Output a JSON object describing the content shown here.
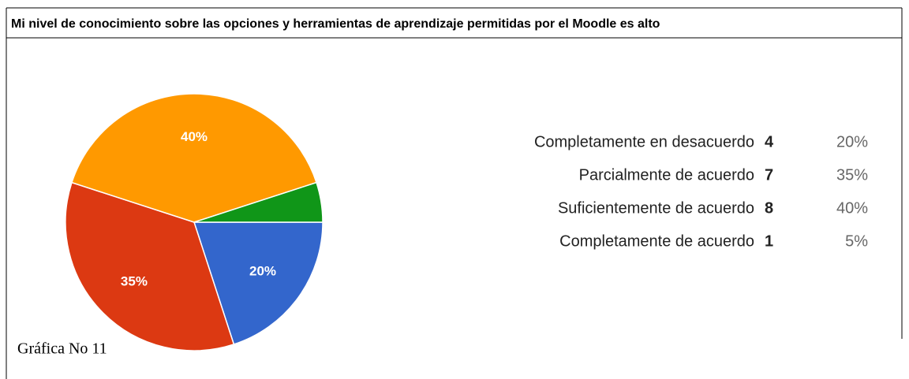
{
  "chart_data": {
    "type": "pie",
    "title": "Mi nivel de conocimiento sobre las opciones y herramientas de aprendizaje permitidas por el Moodle es alto",
    "categories": [
      "Completamente en desacuerdo",
      "Parcialmente de acuerdo",
      "Suficientemente de acuerdo",
      "Completamente de acuerdo"
    ],
    "values": [
      20,
      35,
      40,
      5
    ],
    "value_labels": [
      "20%",
      "35%",
      "40%",
      "5%"
    ],
    "counts": [
      4,
      7,
      8,
      1
    ],
    "colors": [
      "#3366cc",
      "#dc3912",
      "#ff9900",
      "#109618"
    ],
    "caption": "Gráfica No 11"
  }
}
